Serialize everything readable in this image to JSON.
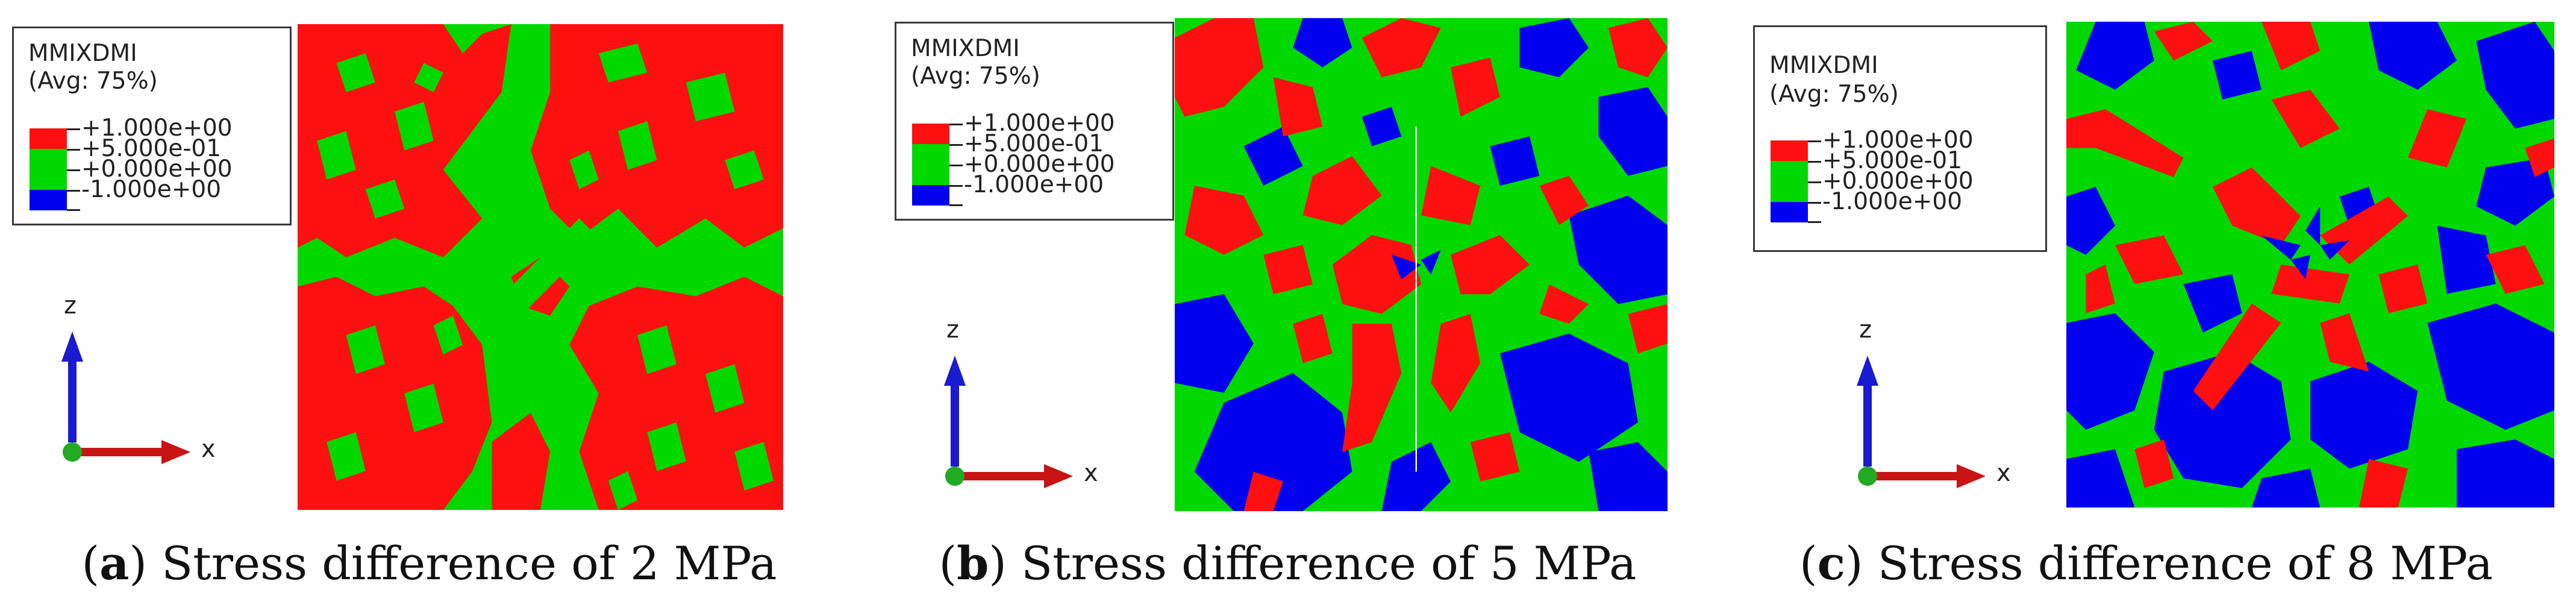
{
  "colors": {
    "red": "#ff1010",
    "green": "#00d800",
    "blue": "#0000ee",
    "triad_blue": "#1a1ad0",
    "triad_red": "#c81414",
    "triad_origin": "#22aa22"
  },
  "legend": {
    "variable": "MMIXDMI",
    "avg": "(Avg: 75%)",
    "entries": [
      {
        "label": "+1.000e+00",
        "color": "#ff1010"
      },
      {
        "label": "+5.000e-01",
        "color": "#00d800"
      },
      {
        "label": "+0.000e+00",
        "color": "#00d800"
      },
      {
        "label": "-1.000e+00",
        "color": "#0000ee"
      }
    ]
  },
  "axes": {
    "z_label": "z",
    "x_label": "x"
  },
  "panels": [
    {
      "letter": "a",
      "open": "(",
      "close": ")",
      "caption": " Stress difference of 2 MPa",
      "stress_mpa": 2
    },
    {
      "letter": "b",
      "open": "(",
      "close": ")",
      "caption": " Stress difference of 5 MPa",
      "stress_mpa": 5
    },
    {
      "letter": "c",
      "open": "(",
      "close": ")",
      "caption": " Stress difference of 8 MPa",
      "stress_mpa": 8
    }
  ]
}
